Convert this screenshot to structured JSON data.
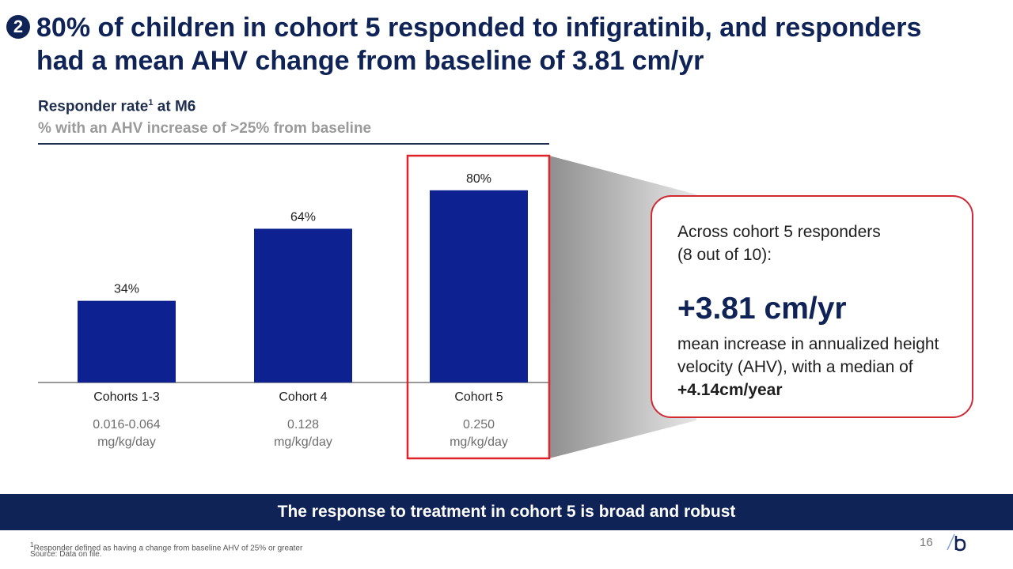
{
  "header": {
    "badge": "2",
    "title_line1": "80% of children in cohort 5 responded to infigratinib, and responders",
    "title_line2": "had a mean AHV change from baseline of 3.81 cm/yr"
  },
  "chart_header": {
    "label": "Responder rate",
    "superscript": "1",
    "label_suffix": " at M6",
    "subtitle": "% with an AHV increase of >25% from baseline"
  },
  "chart_data": {
    "type": "bar",
    "title": "Responder rate at M6",
    "ylabel": "% with an AHV increase of >25% from baseline",
    "categories": [
      "Cohorts 1-3",
      "Cohort 4",
      "Cohort 5"
    ],
    "values": [
      34,
      64,
      80
    ],
    "value_labels": [
      "34%",
      "64%",
      "80%"
    ],
    "doses": [
      "0.016-0.064",
      "0.128",
      "0.250"
    ],
    "dose_unit": "mg/kg/day",
    "ylim": [
      0,
      100
    ],
    "highlight_index": 2,
    "bar_color": "#0d2290",
    "highlight_color": "#e0222b"
  },
  "callout": {
    "intro_line1": "Across cohort 5 responders",
    "intro_line2": "(8 out of 10):",
    "value": "+3.81 cm/yr",
    "desc": "mean increase in annualized height velocity (AHV), with a median of",
    "desc_bold": "+4.14cm/year"
  },
  "banner": {
    "text": "The response to treatment in cohort 5 is broad and robust"
  },
  "footer": {
    "footnote_mark": "1",
    "footnote": "Responder defined as having a change from baseline AHV of 25% or greater",
    "source": "Source: Data on file.",
    "page": "16"
  },
  "colors": {
    "navy": "#0f2356",
    "bar": "#0d2290",
    "accent_red": "#cf2a35"
  }
}
